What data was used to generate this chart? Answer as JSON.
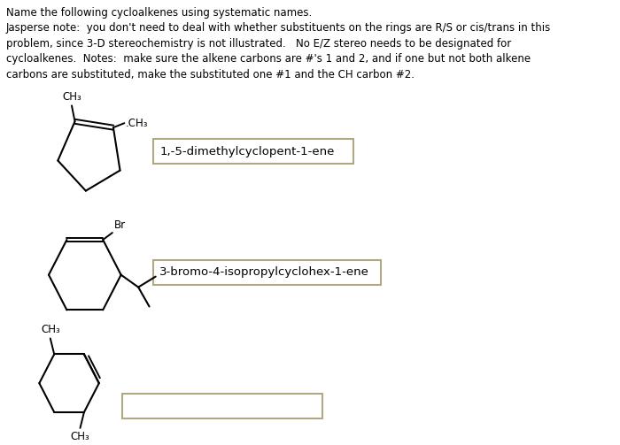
{
  "title_lines": [
    "Name the following cycloalkenes using systematic names.",
    "Jasperse note:  you don't need to deal with whether substituents on the rings are R/S or cis/trans in this",
    "problem, since 3-D stereochemistry is not illustrated.   No E/Z stereo needs to be designated for",
    "cycloalkenes.  Notes:  make sure the alkene carbons are #'s 1 and 2, and if one but not both alkene",
    "carbons are substituted, make the substituted one #1 and the CH carbon #2."
  ],
  "answer1": "1,-5-dimethylcyclopent-1-ene",
  "answer2": "3-bromo-4-isopropylcyclohex-1-ene",
  "answer3": "",
  "bg_color": "#ffffff",
  "text_color": "#000000",
  "box_edge_color": "#b0a880",
  "font_size_title": 8.5,
  "font_size_labels": 9.5,
  "font_size_chem": 8.5
}
